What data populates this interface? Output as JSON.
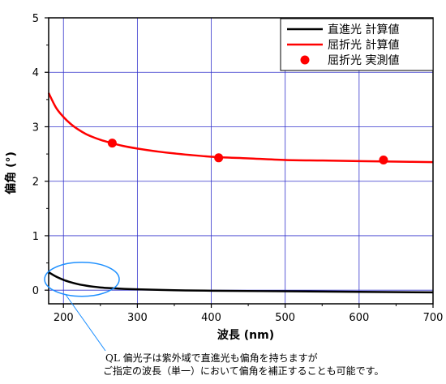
{
  "chart_data": {
    "type": "line",
    "title": "",
    "xlabel": "波長 (nm)",
    "ylabel": "偏角 (°)",
    "xlim": [
      180,
      700
    ],
    "ylim": [
      -0.25,
      5
    ],
    "x_ticks": [
      200,
      300,
      400,
      500,
      600,
      700
    ],
    "y_ticks": [
      0,
      1,
      2,
      3,
      4,
      5
    ],
    "x_tick_labels": [
      "200",
      "300",
      "400",
      "500",
      "600",
      "700"
    ],
    "y_tick_labels": [
      "0",
      "1",
      "2",
      "3",
      "4",
      "5"
    ],
    "grid": true,
    "legend_position": "top-right",
    "series": [
      {
        "name": "直進光 計算値",
        "kind": "line",
        "color": "#000000",
        "x": [
          180,
          190,
          200,
          210,
          220,
          230,
          240,
          250,
          260,
          280,
          300,
          350,
          400,
          500,
          600,
          700
        ],
        "y": [
          0.33,
          0.25,
          0.19,
          0.145,
          0.11,
          0.085,
          0.065,
          0.05,
          0.04,
          0.025,
          0.015,
          0.0,
          -0.01,
          -0.02,
          -0.03,
          -0.04
        ]
      },
      {
        "name": "屈折光 計算値",
        "kind": "line",
        "color": "#ff0000",
        "x": [
          180,
          190,
          200,
          210,
          220,
          230,
          240,
          250,
          260,
          280,
          300,
          325,
          350,
          400,
          450,
          500,
          550,
          600,
          650,
          700
        ],
        "y": [
          3.62,
          3.35,
          3.18,
          3.05,
          2.95,
          2.87,
          2.81,
          2.76,
          2.72,
          2.65,
          2.6,
          2.55,
          2.51,
          2.45,
          2.42,
          2.39,
          2.38,
          2.37,
          2.36,
          2.35
        ]
      },
      {
        "name": "屈折光 実測値",
        "kind": "scatter",
        "color": "#ff0000",
        "x": [
          266,
          410,
          633
        ],
        "y": [
          2.7,
          2.43,
          2.39
        ]
      }
    ],
    "annotation": {
      "lines": [
        "QL 偏光子は紫外域で直進光も偏角を持ちますが",
        "ご指定の波長（単一）において偏角を補正することも可能です。"
      ],
      "ellipse_color": "#1e90ff",
      "ellipse_center": [
        225,
        0.2
      ]
    }
  }
}
